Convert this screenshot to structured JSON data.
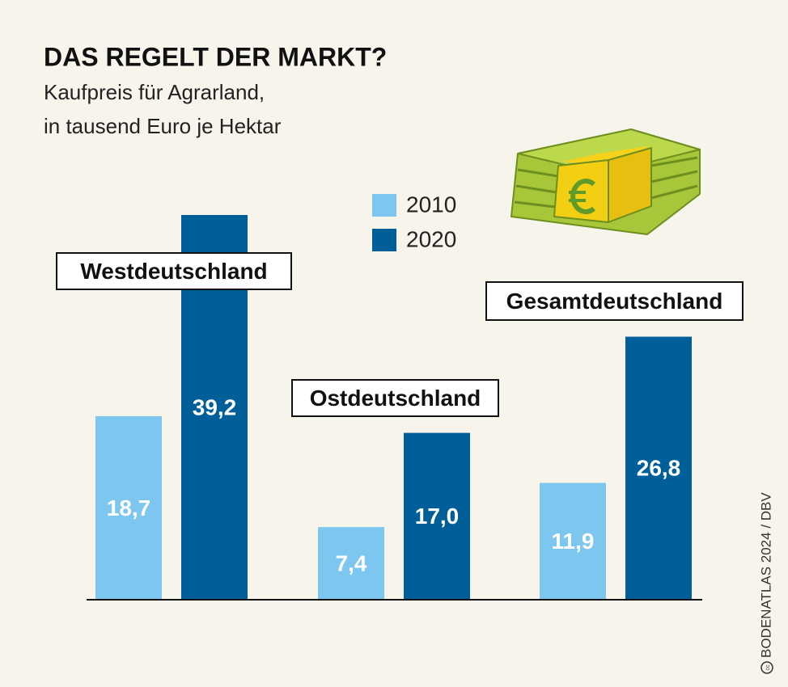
{
  "chart_data": {
    "type": "bar",
    "title": "DAS REGELT DER MARKT?",
    "subtitle": [
      "Kaufpreis für Agrarland,",
      "in tausend Euro je Hektar"
    ],
    "categories": [
      "Westdeutschland",
      "Ostdeutschland",
      "Gesamtdeutschland"
    ],
    "series": [
      {
        "name": "2010",
        "color": "#7cc6ef",
        "values": [
          18.7,
          7.4,
          11.9
        ],
        "value_labels": [
          "18,7",
          "7,4",
          "11,9"
        ]
      },
      {
        "name": "2020",
        "color": "#005f98",
        "values": [
          39.2,
          17.0,
          26.8
        ],
        "value_labels": [
          "39,2",
          "17,0",
          "26,8"
        ]
      }
    ],
    "credit": "BODENATLAS 2024 / DBV"
  }
}
